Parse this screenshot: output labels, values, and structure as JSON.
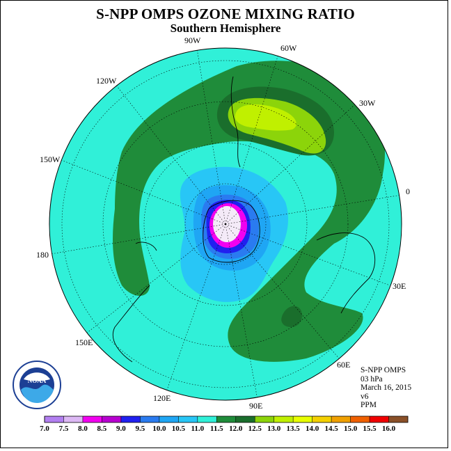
{
  "title": "S-NPP OMPS OZONE MIXING RATIO",
  "subtitle": "Southern Hemisphere",
  "longitude_labels": {
    "w90": "90W",
    "w60": "60W",
    "w30": "30W",
    "w120": "120W",
    "w150": "150W",
    "lon0": "0",
    "lon180": "180",
    "e30": "30E",
    "e60": "60E",
    "e90": "90E",
    "e120": "120E",
    "e150": "150E"
  },
  "info": {
    "instrument": "S-NPP OMPS",
    "level": "03 hPa",
    "date": "March 16, 2015",
    "version": "v6",
    "units": "PPM"
  },
  "logo": {
    "text": "NOAA",
    "ring_text": "NATIONAL OCEANIC AND ATMOSPHERIC ADMINISTRATION · U.S. DEPARTMENT OF COMMERCE"
  },
  "colorbar": {
    "ticks": [
      "7.0",
      "7.5",
      "8.0",
      "8.5",
      "9.0",
      "9.5",
      "10.0",
      "10.5",
      "11.0",
      "11.5",
      "12.0",
      "12.5",
      "13.0",
      "13.5",
      "14.0",
      "14.5",
      "15.0",
      "15.5",
      "16.0"
    ],
    "colors": [
      "#b27ff0",
      "#dcb8f4",
      "#f200f0",
      "#b800d0",
      "#2020f0",
      "#2a7bf0",
      "#1fa6f4",
      "#28c6f6",
      "#30f0d8",
      "#1f8c3a",
      "#1a6e2c",
      "#8cd40a",
      "#c0f000",
      "#e8ff00",
      "#f4d000",
      "#f0a000",
      "#f06000",
      "#f00000",
      "#8a5028"
    ]
  },
  "colors": {
    "map_background": "#30f0d8",
    "band_green": "#1f8c3a",
    "band_darkgreen": "#1a6e2c",
    "yellow_green": "#8cd40a",
    "yellow": "#c0f000",
    "blue_light": "#28c6f6",
    "blue_mid": "#2a7bf0",
    "pole_magenta": "#f200f0"
  }
}
